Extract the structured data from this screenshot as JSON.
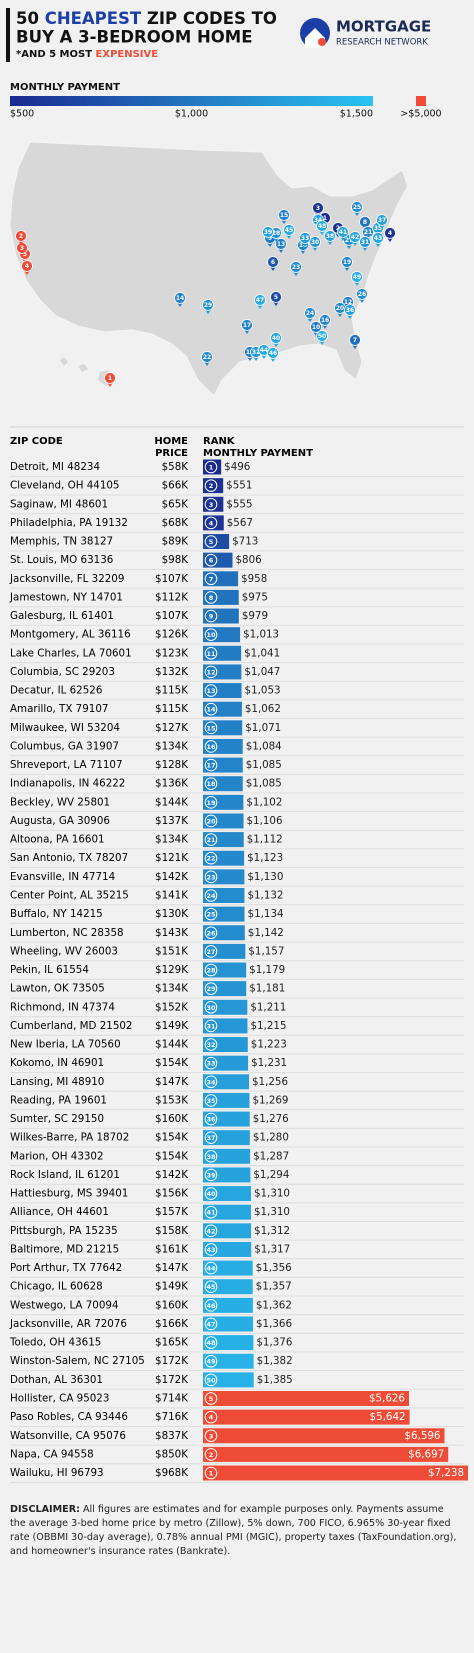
{
  "chart_data": {
    "type": "bar",
    "title_line1": [
      "50 ",
      "CHEAPEST",
      " ZIP CODES TO"
    ],
    "title_line2": "BUY A 3-BEDROOM HOME",
    "subtitle": [
      "*AND 5 MOST ",
      "EXPENSIVE"
    ],
    "brand": {
      "name": "MORTGAGE",
      "tagline": "RESEARCH NETWORK"
    },
    "legend": {
      "title": "MONTHLY PAYMENT",
      "ticks": [
        {
          "value": 500,
          "label": "$500"
        },
        {
          "value": 1000,
          "label": "$1,000"
        },
        {
          "value": 1500,
          "label": "$1,500"
        }
      ],
      "over_tick": {
        "value": 5000,
        "label": ">$5,000"
      },
      "colors": [
        "#1b2a8e",
        "#29c3f2"
      ],
      "over_color": "#ef4c37"
    },
    "columns": {
      "zip": "ZIP CODE",
      "price": [
        "HOME",
        "PRICE"
      ],
      "payment": [
        "RANK",
        "MONTHLY PAYMENT"
      ]
    },
    "categories": [
      "Detroit, MI 48234",
      "Cleveland, OH 44105",
      "Saginaw, MI 48601",
      "Philadelphia, PA 19132",
      "Memphis, TN 38127",
      "St. Louis, MO 63136",
      "Jacksonville, FL 32209",
      "Jamestown, NY 14701",
      "Galesburg, IL 61401",
      "Montgomery, AL 36116",
      "Lake Charles, LA 70601",
      "Columbia, SC 29203",
      "Decatur, IL 62526",
      "Amarillo, TX 79107",
      "Milwaukee, WI 53204",
      "Columbus, GA 31907",
      "Shreveport, LA 71107",
      "Indianapolis, IN 46222",
      "Beckley, WV 25801",
      "Augusta, GA 30906",
      "Altoona, PA 16601",
      "San Antonio, TX 78207",
      "Evansville, IN 47714",
      "Center Point, AL 35215",
      "Buffalo, NY 14215",
      "Lumberton, NC 28358",
      "Wheeling, WV 26003",
      "Pekin, IL 61554",
      "Lawton, OK 73505",
      "Richmond, IN 47374",
      "Cumberland, MD 21502",
      "New Iberia, LA 70560",
      "Kokomo, IN 46901",
      "Lansing, MI 48910",
      "Reading, PA 19601",
      "Sumter, SC 29150",
      "Wilkes-Barre, PA 18702",
      "Marion, OH 43302",
      "Rock Island, IL 61201",
      "Hattiesburg, MS 39401",
      "Alliance, OH 44601",
      "Pittsburgh, PA 15235",
      "Baltimore, MD 21215",
      "Port Arthur, TX 77642",
      "Chicago, IL 60628",
      "Westwego, LA 70094",
      "Jacksonville, AR 72076",
      "Toledo, OH 43615",
      "Winston-Salem, NC 27105",
      "Dothan, AL 36301",
      "Hollister, CA 95023",
      "Paso Robles, CA 93446",
      "Watsonville, CA 95076",
      "Napa, CA 94558",
      "Wailuku, HI 96793"
    ],
    "home_prices": [
      "$58K",
      "$66K",
      "$65K",
      "$68K",
      "$89K",
      "$98K",
      "$107K",
      "$112K",
      "$107K",
      "$126K",
      "$123K",
      "$132K",
      "$115K",
      "$115K",
      "$127K",
      "$134K",
      "$128K",
      "$136K",
      "$144K",
      "$137K",
      "$134K",
      "$121K",
      "$142K",
      "$141K",
      "$130K",
      "$143K",
      "$151K",
      "$129K",
      "$134K",
      "$152K",
      "$149K",
      "$144K",
      "$154K",
      "$147K",
      "$153K",
      "$160K",
      "$154K",
      "$154K",
      "$142K",
      "$156K",
      "$157K",
      "$158K",
      "$161K",
      "$147K",
      "$149K",
      "$160K",
      "$166K",
      "$165K",
      "$172K",
      "$172K",
      "$714K",
      "$716K",
      "$837K",
      "$850K",
      "$968K"
    ],
    "ranks": [
      1,
      2,
      3,
      4,
      5,
      6,
      7,
      8,
      9,
      10,
      11,
      12,
      13,
      14,
      15,
      16,
      17,
      18,
      19,
      20,
      21,
      22,
      23,
      24,
      25,
      26,
      27,
      28,
      29,
      30,
      31,
      32,
      33,
      34,
      35,
      36,
      37,
      38,
      39,
      40,
      41,
      42,
      43,
      44,
      45,
      46,
      47,
      48,
      49,
      50,
      5,
      4,
      3,
      2,
      1
    ],
    "values": [
      496,
      551,
      555,
      567,
      713,
      806,
      958,
      975,
      979,
      1013,
      1041,
      1047,
      1053,
      1062,
      1071,
      1084,
      1085,
      1085,
      1102,
      1106,
      1112,
      1123,
      1130,
      1132,
      1134,
      1142,
      1157,
      1179,
      1181,
      1211,
      1215,
      1223,
      1231,
      1256,
      1269,
      1276,
      1280,
      1287,
      1294,
      1310,
      1310,
      1312,
      1317,
      1356,
      1357,
      1362,
      1366,
      1376,
      1382,
      1385,
      5626,
      5642,
      6596,
      6697,
      7238
    ],
    "value_labels": [
      "$496",
      "$551",
      "$555",
      "$567",
      "$713",
      "$806",
      "$958",
      "$975",
      "$979",
      "$1,013",
      "$1,041",
      "$1,047",
      "$1,053",
      "$1,062",
      "$1,071",
      "$1,084",
      "$1,085",
      "$1,085",
      "$1,102",
      "$1,106",
      "$1,112",
      "$1,123",
      "$1,130",
      "$1,132",
      "$1,134",
      "$1,142",
      "$1,157",
      "$1,179",
      "$1,181",
      "$1,211",
      "$1,215",
      "$1,223",
      "$1,231",
      "$1,256",
      "$1,269",
      "$1,276",
      "$1,280",
      "$1,287",
      "$1,294",
      "$1,310",
      "$1,310",
      "$1,312",
      "$1,317",
      "$1,356",
      "$1,357",
      "$1,362",
      "$1,366",
      "$1,376",
      "$1,382",
      "$1,385",
      "$5,626",
      "$5,642",
      "$6,596",
      "$6,697",
      "$7,238"
    ],
    "disclaimer": {
      "label": "DISCLAIMER:",
      "text": "All figures are estimates and for example purposes only. Payments assume the average 3-bed home price by metro (Zillow), 5% down, 700 FICO, 6.965% 30-year fixed rate (OBBMI 30-day average), 0.78% annual PMI (MGIC), property taxes (TaxFoundation.org), and homeowner's insurance rates (Bankrate)."
    }
  }
}
